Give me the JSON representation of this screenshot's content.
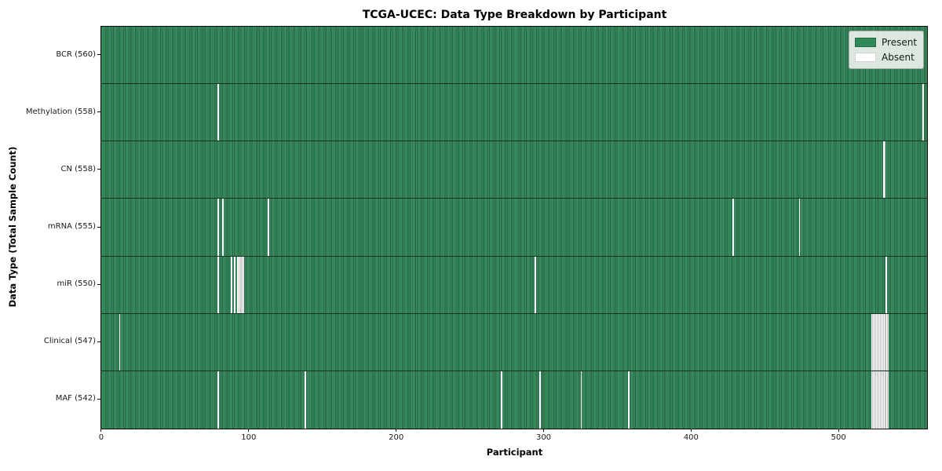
{
  "title": "TCGA-UCEC: Data Type Breakdown by Participant",
  "xlabel": "Participant",
  "ylabel": "Data Type (Total Sample Count)",
  "legend": {
    "present_label": "Present",
    "absent_label": "Absent"
  },
  "colors": {
    "present": "#2e8b57",
    "present_stripe_light": "#3c9464",
    "present_stripe_dark": "#256140",
    "absent": "#ffffff",
    "absent_separator": "#c4c4c4",
    "row_separator": "#10301f",
    "axis": "#0c0c0c"
  },
  "x_ticks": [
    0,
    100,
    200,
    300,
    400,
    500
  ],
  "chart_data": {
    "type": "heatmap",
    "title": "TCGA-UCEC: Data Type Breakdown by Participant",
    "xlabel": "Participant",
    "ylabel": "Data Type (Total Sample Count)",
    "legend_entries": [
      "Present",
      "Absent"
    ],
    "legend_position": "upper right",
    "n_participants": 560,
    "xlim": [
      -0.5,
      559.5
    ],
    "x_tick_values": [
      0,
      100,
      200,
      300,
      400,
      500
    ],
    "rows": [
      {
        "name": "BCR",
        "label": "BCR (560)",
        "present_count": 560,
        "absent_participants": []
      },
      {
        "name": "Methylation",
        "label": "Methylation (558)",
        "present_count": 558,
        "absent_participants": [
          79,
          557
        ]
      },
      {
        "name": "CN",
        "label": "CN (558)",
        "present_count": 558,
        "absent_participants": [
          530,
          531
        ]
      },
      {
        "name": "mRNA",
        "label": "mRNA (555)",
        "present_count": 555,
        "absent_participants": [
          79,
          82,
          113,
          428,
          473
        ]
      },
      {
        "name": "miR",
        "label": "miR (550)",
        "present_count": 550,
        "absent_participants": [
          79,
          88,
          90,
          92,
          93,
          94,
          95,
          96,
          294,
          532
        ]
      },
      {
        "name": "Clinical",
        "label": "Clinical (547)",
        "present_count": 547,
        "absent_participants": [
          12,
          522,
          523,
          524,
          525,
          526,
          527,
          528,
          529,
          530,
          531,
          532,
          533
        ]
      },
      {
        "name": "MAF",
        "label": "MAF (542)",
        "present_count": 542,
        "absent_participants": [
          79,
          138,
          271,
          297,
          325,
          357,
          522,
          523,
          524,
          525,
          526,
          527,
          528,
          529,
          530,
          531,
          532,
          533
        ]
      }
    ]
  }
}
